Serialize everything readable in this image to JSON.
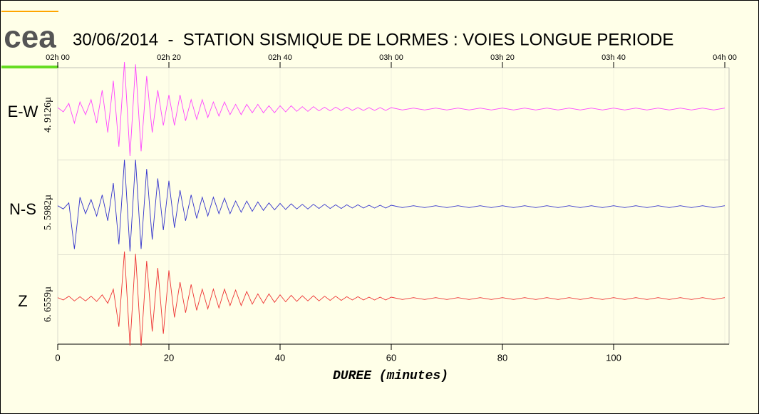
{
  "chart_data": {
    "type": "seismogram",
    "logo": "cea",
    "title": "30/06/2014  -  STATION SISMIQUE DE LORMES : VOIES LONGUE PERIODE",
    "x_label": "DUREE (minutes)",
    "xlim": [
      0,
      120
    ],
    "xticks": [
      0,
      20,
      40,
      60,
      80,
      100
    ],
    "x2ticks": [
      {
        "value": 0,
        "label": "02h 00"
      },
      {
        "value": 20,
        "label": "02h 20"
      },
      {
        "value": 40,
        "label": "02h 40"
      },
      {
        "value": 60,
        "label": "03h 00"
      },
      {
        "value": 80,
        "label": "03h 20"
      },
      {
        "value": 100,
        "label": "03h 40"
      },
      {
        "value": 120,
        "label": "04h 00"
      }
    ],
    "ylim": [
      -1,
      1
    ],
    "x": [
      0,
      1,
      2,
      3,
      4,
      5,
      6,
      7,
      8,
      9,
      10,
      11,
      12,
      13,
      14,
      15,
      16,
      17,
      18,
      19,
      20,
      21,
      22,
      23,
      24,
      25,
      26,
      27,
      28,
      29,
      30,
      31,
      32,
      33,
      34,
      35,
      36,
      37,
      38,
      39,
      40,
      41,
      42,
      43,
      44,
      45,
      46,
      47,
      48,
      49,
      50,
      51,
      52,
      53,
      54,
      55,
      56,
      57,
      58,
      59,
      60,
      62,
      64,
      66,
      68,
      70,
      72,
      74,
      76,
      78,
      80,
      82,
      84,
      86,
      88,
      90,
      92,
      94,
      96,
      98,
      100,
      102,
      104,
      106,
      108,
      110,
      112,
      114,
      116,
      118,
      120
    ],
    "series": [
      {
        "name": "E-W",
        "scale_label": "4. 9126µ",
        "color": "#ff44ff",
        "values": [
          0.03,
          -0.06,
          0.12,
          -0.3,
          0.15,
          -0.12,
          0.2,
          -0.3,
          0.4,
          -0.5,
          0.6,
          -0.8,
          1.0,
          -1.0,
          0.95,
          -0.9,
          0.7,
          -0.5,
          0.4,
          -0.35,
          0.3,
          -0.35,
          0.3,
          -0.25,
          0.2,
          -0.22,
          0.2,
          -0.18,
          0.15,
          -0.15,
          0.15,
          -0.12,
          0.1,
          -0.12,
          0.1,
          -0.08,
          0.1,
          -0.08,
          0.07,
          -0.08,
          0.07,
          -0.06,
          0.07,
          -0.05,
          0.05,
          -0.05,
          0.05,
          -0.04,
          0.04,
          -0.04,
          0.04,
          -0.03,
          0.04,
          -0.03,
          0.03,
          -0.03,
          0.03,
          -0.03,
          0.03,
          -0.03,
          0.03,
          -0.02,
          0.02,
          -0.02,
          0.02,
          -0.02,
          0.02,
          -0.02,
          0.02,
          -0.02,
          0.02,
          -0.02,
          0.02,
          -0.02,
          0.02,
          -0.02,
          0.02,
          -0.02,
          0.02,
          -0.02,
          0.02,
          -0.02,
          0.02,
          -0.02,
          0.02,
          -0.02,
          0.02,
          -0.02,
          0.02,
          -0.02,
          0.02
        ]
      },
      {
        "name": "N-S",
        "scale_label": "5. 5982µ",
        "color": "#3333cc",
        "values": [
          0.02,
          -0.05,
          0.08,
          -0.9,
          0.2,
          -0.15,
          0.15,
          -0.2,
          0.25,
          -0.3,
          0.5,
          -0.8,
          1.0,
          -0.95,
          1.0,
          -0.9,
          0.8,
          -0.7,
          0.6,
          -0.5,
          0.55,
          -0.45,
          0.35,
          -0.3,
          0.25,
          -0.25,
          0.2,
          -0.2,
          0.2,
          -0.15,
          0.18,
          -0.15,
          0.12,
          -0.12,
          0.12,
          -0.1,
          0.1,
          -0.08,
          0.08,
          -0.07,
          0.07,
          -0.06,
          0.06,
          -0.05,
          0.05,
          -0.05,
          0.05,
          -0.04,
          0.05,
          -0.04,
          0.04,
          -0.04,
          0.04,
          -0.03,
          0.04,
          -0.03,
          0.03,
          -0.03,
          0.03,
          -0.03,
          0.03,
          -0.02,
          0.02,
          -0.02,
          0.02,
          -0.02,
          0.02,
          -0.02,
          0.02,
          -0.02,
          0.02,
          -0.02,
          0.02,
          -0.02,
          0.02,
          -0.02,
          0.02,
          -0.02,
          0.02,
          -0.02,
          0.02,
          -0.02,
          0.02,
          -0.02,
          0.02,
          -0.02,
          0.02,
          -0.02,
          0.02,
          -0.02,
          0.02
        ]
      },
      {
        "name": "Z",
        "scale_label": "6. 6559µ",
        "color": "#ee3333",
        "values": [
          0.02,
          -0.03,
          0.05,
          -0.05,
          0.04,
          -0.05,
          0.05,
          -0.06,
          0.08,
          -0.1,
          0.2,
          -0.6,
          1.0,
          -1.0,
          0.95,
          -1.0,
          0.8,
          -0.7,
          0.65,
          -0.75,
          0.6,
          -0.4,
          0.35,
          -0.3,
          0.3,
          -0.25,
          0.2,
          -0.22,
          0.2,
          -0.2,
          0.2,
          -0.15,
          0.18,
          -0.15,
          0.15,
          -0.12,
          0.1,
          -0.1,
          0.1,
          -0.08,
          0.08,
          -0.07,
          0.07,
          -0.06,
          0.06,
          -0.05,
          0.06,
          -0.05,
          0.05,
          -0.04,
          0.05,
          -0.04,
          0.04,
          -0.03,
          0.04,
          -0.03,
          0.03,
          -0.03,
          0.03,
          -0.03,
          0.03,
          -0.02,
          0.02,
          -0.02,
          0.02,
          -0.02,
          0.02,
          -0.02,
          0.02,
          -0.02,
          0.02,
          -0.02,
          0.02,
          -0.02,
          0.02,
          -0.02,
          0.02,
          -0.02,
          0.02,
          -0.02,
          0.02,
          -0.02,
          0.02,
          -0.02,
          0.02,
          -0.02,
          0.02,
          -0.02,
          0.02,
          -0.02,
          0.02
        ]
      }
    ]
  }
}
